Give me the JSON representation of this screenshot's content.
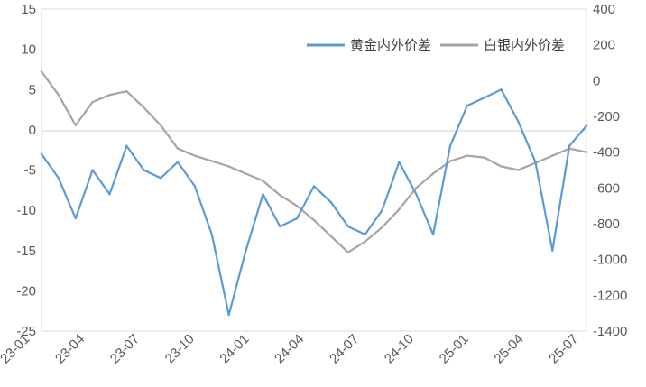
{
  "chart_data": {
    "type": "line",
    "title": "",
    "xlabel": "",
    "ylabel_left": "",
    "ylabel_right": "",
    "x_ticks": [
      "23-01",
      "23-04",
      "23-07",
      "23-10",
      "24-01",
      "24-04",
      "24-07",
      "24-10",
      "25-01",
      "25-04",
      "25-07"
    ],
    "x_range": [
      "2023-01",
      "2025-09"
    ],
    "y_left": {
      "min": -25,
      "max": 15,
      "ticks": [
        -25,
        -20,
        -15,
        -10,
        -5,
        0,
        5,
        10,
        15
      ],
      "tick_labels": [
        "-25",
        "-20",
        "-15",
        "-10",
        "-5",
        "0",
        "5",
        "10",
        "15"
      ]
    },
    "y_right": {
      "min": -1400,
      "max": 400,
      "ticks": [
        -1400,
        -1200,
        -1000,
        -800,
        -600,
        -400,
        -200,
        0,
        200,
        400
      ],
      "tick_labels": [
        "-1400",
        "-1200",
        "-1000",
        "-800",
        "-600",
        "-400",
        "-200",
        "0",
        "200",
        "400"
      ]
    },
    "legend_position": "top-right",
    "grid": false,
    "zero_line": true,
    "series": [
      {
        "name": "黄金内外价差",
        "axis": "left",
        "color": "#5B9BD5",
        "x": [
          0,
          1,
          2,
          3,
          4,
          5,
          6,
          7,
          8,
          9,
          10,
          11,
          12,
          13,
          14,
          15,
          16,
          17,
          18,
          19,
          20,
          21,
          22,
          23,
          24,
          25,
          26,
          27,
          28,
          29,
          30,
          31,
          32
        ],
        "y": [
          -3,
          -6,
          -11,
          -5,
          -8,
          -2,
          -5,
          -6,
          -4,
          -7,
          -13,
          -23,
          -15,
          -8,
          -12,
          -11,
          -7,
          -9,
          -12,
          -13,
          -10,
          -4,
          -8,
          -13,
          -2,
          3,
          4,
          5,
          1,
          -4,
          -15,
          -2,
          0.5
        ],
        "x_dates": [
          "2023-01",
          "2023-02",
          "2023-03",
          "2023-04",
          "2023-05",
          "2023-06",
          "2023-07",
          "2023-08",
          "2023-09",
          "2023-10",
          "2023-11",
          "2023-12",
          "2024-01",
          "2024-02",
          "2024-03",
          "2024-04",
          "2024-05",
          "2024-06",
          "2024-07",
          "2024-08",
          "2024-09",
          "2024-10",
          "2024-11",
          "2024-12",
          "2025-01",
          "2025-02",
          "2025-03",
          "2025-04",
          "2025-05",
          "2025-06",
          "2025-07",
          "2025-08",
          "2025-09"
        ]
      },
      {
        "name": "白银内外价差",
        "axis": "right",
        "color": "#A5A5A5",
        "x": [
          0,
          1,
          2,
          3,
          4,
          5,
          6,
          7,
          8,
          9,
          10,
          11,
          12,
          13,
          14,
          15,
          16,
          17,
          18,
          19,
          20,
          21,
          22,
          23,
          24,
          25,
          26,
          27,
          28,
          29,
          30,
          31,
          32
        ],
        "y": [
          50,
          -80,
          -250,
          -120,
          -80,
          -60,
          -150,
          -250,
          -380,
          -420,
          -450,
          -480,
          -520,
          -560,
          -640,
          -700,
          -780,
          -870,
          -960,
          -900,
          -820,
          -720,
          -600,
          -520,
          -450,
          -420,
          -430,
          -480,
          -500,
          -460,
          -420,
          -380,
          -400
        ],
        "x_dates": [
          "2023-01",
          "2023-02",
          "2023-03",
          "2023-04",
          "2023-05",
          "2023-06",
          "2023-07",
          "2023-08",
          "2023-09",
          "2023-10",
          "2023-11",
          "2023-12",
          "2024-01",
          "2024-02",
          "2024-03",
          "2024-04",
          "2024-05",
          "2024-06",
          "2024-07",
          "2024-08",
          "2024-09",
          "2024-10",
          "2024-11",
          "2024-12",
          "2025-01",
          "2025-02",
          "2025-03",
          "2025-04",
          "2025-05",
          "2025-06",
          "2025-07",
          "2025-08",
          "2025-09"
        ]
      }
    ]
  }
}
